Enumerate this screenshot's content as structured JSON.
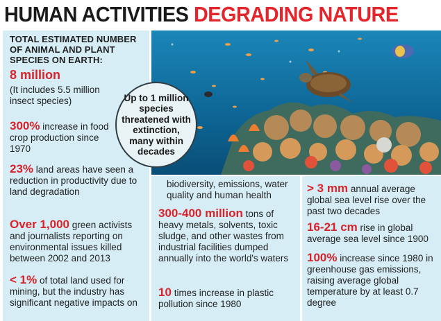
{
  "title": {
    "part1": "HUMAN ACTIVITIES",
    "part2": "DEGRADING NATURE"
  },
  "left": {
    "caption": "TOTAL ESTIMATED NUMBER OF ANIMAL AND PLANT SPECIES ON EARTH:",
    "species_value": "8 million",
    "species_note": "(It includes 5.5 million insect species)",
    "food_value": "300%",
    "food_text": "increase in food crop production since 1970",
    "land_value": "23%",
    "land_text": "land areas have seen a reduction in productivity due to land degradation",
    "activists_value": "Over 1,000",
    "activists_text": "green activists and journalists reporting on environmental issues killed between 2002 and 2013",
    "mining_value": "< 1%",
    "mining_text": "of total land used for mining, but the industry has significant negative impacts on"
  },
  "callout": "Up to 1 million species threatened with extinction, many within decades",
  "middle": {
    "continued": "biodiversity, emissions, water quality and human health",
    "waste_value": "300-400 million",
    "waste_text": "tons of heavy metals, solvents, toxic sludge, and other wastes from industrial facilities dumped annually into the world's waters",
    "plastic_value": "10",
    "plastic_text": "times increase in plastic pollution since 1980"
  },
  "right": {
    "sea_rate_value": "> 3 mm",
    "sea_rate_text": "annual average global sea level rise over the past two decades",
    "sea_total_value": "16-21 cm",
    "sea_total_text": "rise in global average sea level since 1900",
    "ghg_value": "100%",
    "ghg_text": "increase since 1980 in greenhouse gas emissions, raising average global temperature by at least 0.7 degree"
  },
  "colors": {
    "accent": "#d8232a",
    "panel": "#d6edf5",
    "ocean": "#0f6f9e"
  }
}
